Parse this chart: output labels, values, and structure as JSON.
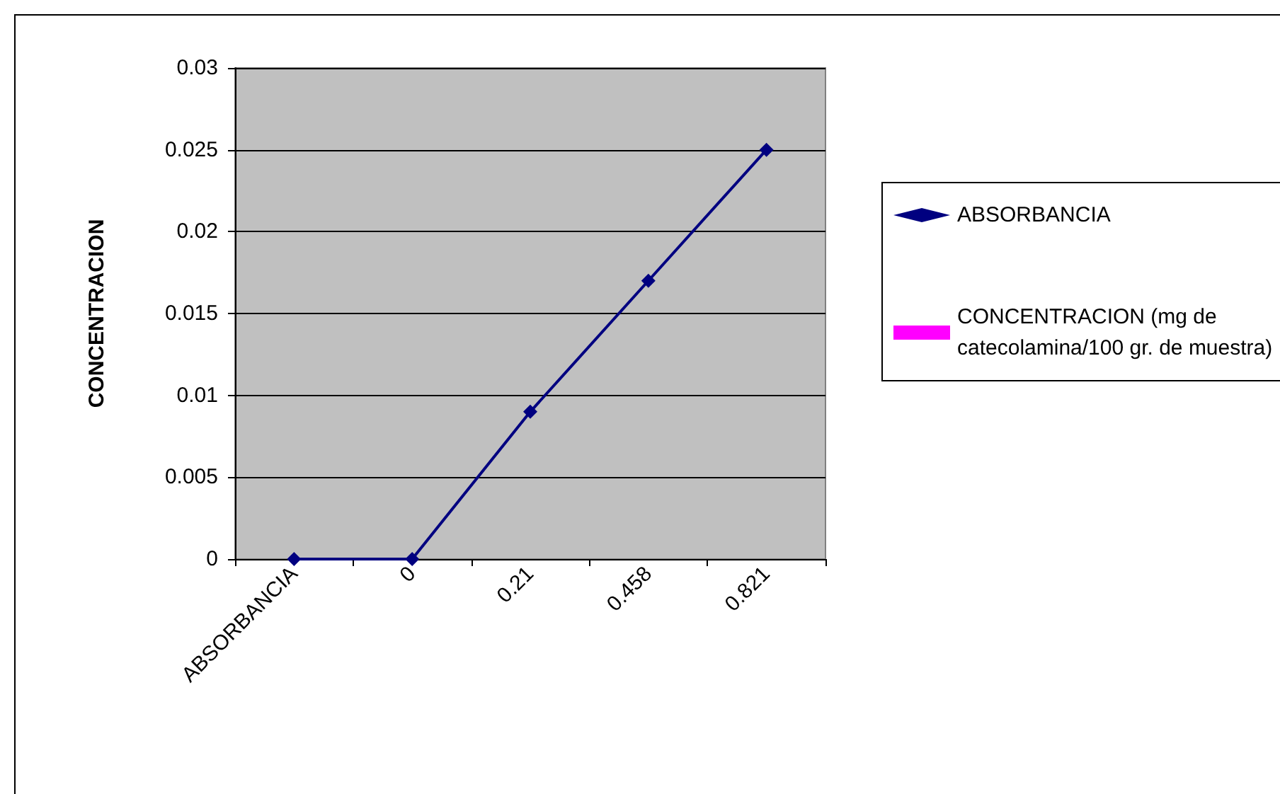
{
  "chart_data": {
    "type": "line",
    "ylabel": "CONCENTRACION",
    "categories": [
      "ABSORBANCIA",
      "0",
      "0.21",
      "0.458",
      "0.821"
    ],
    "series": [
      {
        "name": "ABSORBANCIA",
        "color": "#000080",
        "marker": "diamond",
        "values": [
          0,
          0,
          0.009,
          0.017,
          0.025
        ]
      },
      {
        "name": "CONCENTRACION (mg de catecolamina/100 gr. de muestra)",
        "color": "#ff00ff",
        "marker": "square",
        "values": [
          null,
          null,
          null,
          null,
          null
        ]
      }
    ],
    "ylim": [
      0,
      0.03
    ],
    "yticks": [
      0,
      0.005,
      0.01,
      0.015,
      0.02,
      0.025,
      0.03
    ],
    "grid": "y",
    "legend": "right",
    "line_style": "solid"
  }
}
